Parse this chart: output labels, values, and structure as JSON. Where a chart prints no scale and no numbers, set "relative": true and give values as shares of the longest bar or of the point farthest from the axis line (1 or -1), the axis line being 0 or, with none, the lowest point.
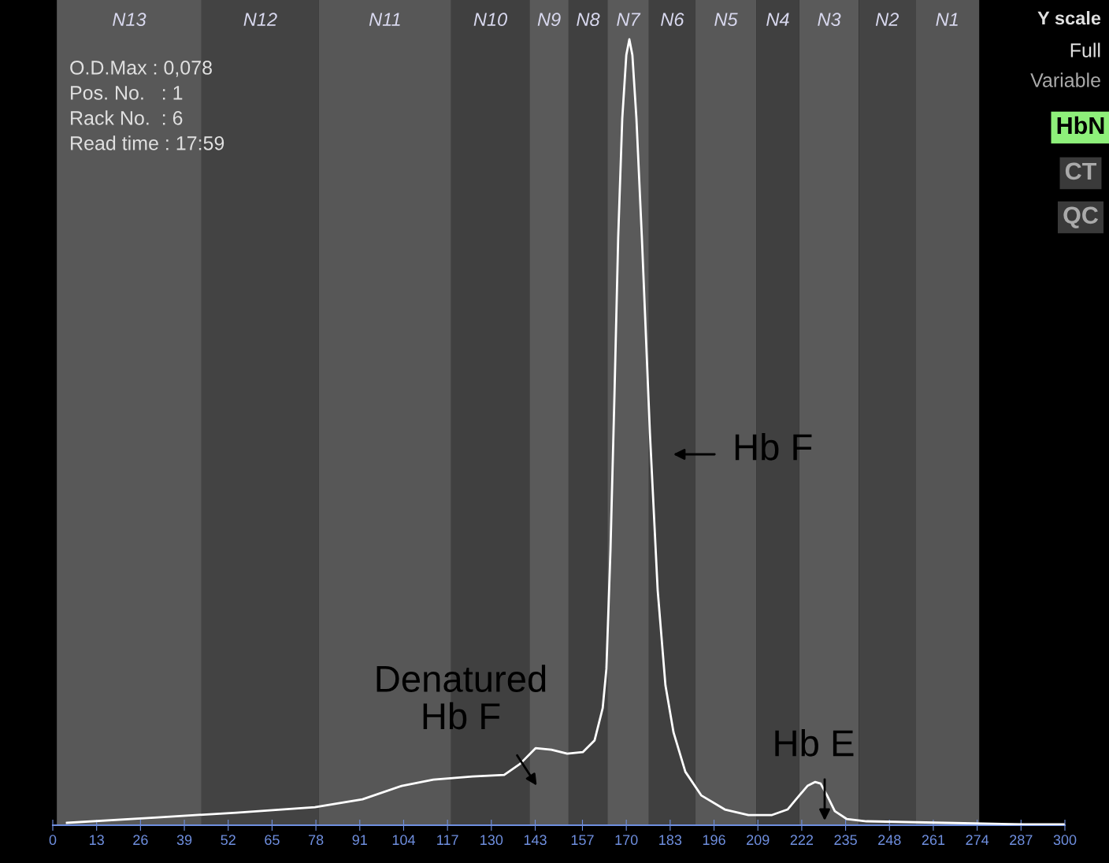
{
  "chart_data": {
    "type": "line",
    "relative": true,
    "x": [
      4.2,
      31.1,
      54.4,
      77.7,
      91.8,
      103.4,
      112.8,
      124.4,
      133.8,
      138.5,
      143.1,
      147.8,
      152.5,
      157.1,
      160.6,
      163.0,
      164.1,
      165.3,
      166.5,
      167.6,
      168.8,
      170.0,
      170.9,
      171.8,
      173.0,
      174.6,
      177.0,
      179.3,
      181.6,
      184.0,
      187.5,
      192.2,
      199.2,
      206.2,
      213.2,
      217.8,
      221.3,
      223.7,
      226.0,
      227.6,
      229.5,
      231.8,
      235.3,
      241.2,
      264.5,
      287.9,
      299.6
    ],
    "series": [
      {
        "color": "#ffffff",
        "values": [
          0.003,
          0.01,
          0.016,
          0.023,
          0.033,
          0.05,
          0.058,
          0.062,
          0.064,
          0.078,
          0.098,
          0.096,
          0.091,
          0.093,
          0.108,
          0.149,
          0.199,
          0.349,
          0.549,
          0.749,
          0.899,
          0.98,
          1,
          0.98,
          0.899,
          0.749,
          0.499,
          0.299,
          0.178,
          0.118,
          0.068,
          0.038,
          0.02,
          0.013,
          0.013,
          0.02,
          0.038,
          0.05,
          0.055,
          0.053,
          0.038,
          0.018,
          0.008,
          0.005,
          0.003,
          0.001,
          0.001
        ]
      }
    ],
    "xlim": [
      0,
      300
    ],
    "xticks": [
      0,
      13,
      26,
      39,
      52,
      65,
      78,
      91,
      104,
      117,
      130,
      143,
      157,
      170,
      183,
      196,
      209,
      222,
      235,
      248,
      261,
      274,
      287,
      300
    ],
    "bands": [
      {
        "axis": "x",
        "from": 1.2,
        "to": 44.1,
        "label": "N13",
        "color": "#585858"
      },
      {
        "axis": "x",
        "from": 44.1,
        "to": 78.9,
        "label": "N12",
        "color": "#434343"
      },
      {
        "axis": "x",
        "from": 78.9,
        "to": 118.1,
        "label": "N11",
        "color": "#575757"
      },
      {
        "axis": "x",
        "from": 118.1,
        "to": 141.3,
        "label": "N10",
        "color": "#404040"
      },
      {
        "axis": "x",
        "from": 141.3,
        "to": 152.9,
        "label": "N9",
        "color": "#5a5a5a"
      },
      {
        "axis": "x",
        "from": 152.9,
        "to": 164.4,
        "label": "N8",
        "color": "#404040"
      },
      {
        "axis": "x",
        "from": 164.4,
        "to": 176.7,
        "label": "N7",
        "color": "#5a5a5a"
      },
      {
        "axis": "x",
        "from": 176.7,
        "to": 190.5,
        "label": "N6",
        "color": "#404040"
      },
      {
        "axis": "x",
        "from": 190.5,
        "to": 208.5,
        "label": "N5",
        "color": "#585858"
      },
      {
        "axis": "x",
        "from": 208.5,
        "to": 221.3,
        "label": "N4",
        "color": "#404040"
      },
      {
        "axis": "x",
        "from": 221.3,
        "to": 238.9,
        "label": "N3",
        "color": "#5a5a5a"
      },
      {
        "axis": "x",
        "from": 238.9,
        "to": 255.7,
        "label": "N2",
        "color": "#444444"
      },
      {
        "axis": "x",
        "from": 255.7,
        "to": 274.6,
        "label": "N1",
        "color": "#555555"
      }
    ],
    "annotations": [
      "O.D.Max : 0,078",
      "Pos. No.   : 1",
      "Rack No.  : 6",
      "Read time : 17:59",
      "Y scale",
      "Full",
      "Variable",
      "HbN",
      "CT",
      "QC",
      "Hb F",
      "Denatured\nHb F",
      "Hb E"
    ],
    "grid": false,
    "marker": "none",
    "line_style": "solid"
  }
}
